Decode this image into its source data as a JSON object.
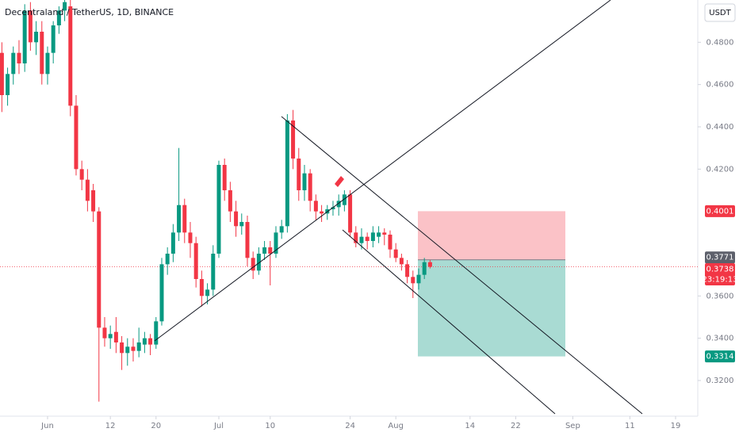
{
  "chart_data": {
    "type": "candlestick",
    "title": "Decentraland / TetherUS, 1D, BINANCE",
    "currency": "USDT",
    "x": [
      -8,
      -7,
      -6,
      -5,
      -4,
      -3,
      -2,
      -1,
      0,
      1,
      2,
      3,
      4,
      5,
      6,
      7,
      8,
      9,
      10,
      11,
      12,
      13,
      14,
      15,
      16,
      17,
      18,
      19,
      20,
      21,
      22,
      23,
      24,
      25,
      26,
      27,
      28,
      29,
      30,
      31,
      32,
      33,
      34,
      35,
      36,
      37,
      38,
      39,
      40,
      41,
      42,
      43,
      44,
      45,
      46,
      47,
      48,
      49,
      50,
      51,
      52,
      53,
      54,
      55,
      56,
      57,
      58,
      59,
      60,
      61,
      62,
      63,
      64,
      65,
      66,
      67
    ],
    "open": [
      0.475,
      0.455,
      0.465,
      0.475,
      0.47,
      0.495,
      0.48,
      0.485,
      0.465,
      0.475,
      0.488,
      0.495,
      0.497,
      0.45,
      0.42,
      0.415,
      0.41,
      0.4,
      0.345,
      0.34,
      0.343,
      0.338,
      0.333,
      0.336,
      0.334,
      0.337,
      0.34,
      0.337,
      0.348,
      0.375,
      0.38,
      0.39,
      0.403,
      0.39,
      0.385,
      0.368,
      0.36,
      0.363,
      0.38,
      0.422,
      0.41,
      0.4,
      0.393,
      0.395,
      0.378,
      0.372,
      0.38,
      0.383,
      0.38,
      0.39,
      0.393,
      0.443,
      0.425,
      0.41,
      0.418,
      0.405,
      0.4,
      0.399,
      0.401,
      0.402,
      0.403,
      0.408,
      0.39,
      0.385,
      0.388,
      0.386,
      0.388,
      0.39,
      0.389,
      0.382,
      0.378,
      0.375,
      0.369,
      0.366,
      0.37,
      0.376
    ],
    "high": [
      0.48,
      0.468,
      0.478,
      0.481,
      0.498,
      0.499,
      0.49,
      0.49,
      0.478,
      0.49,
      0.497,
      0.5,
      0.5,
      0.455,
      0.424,
      0.42,
      0.413,
      0.402,
      0.35,
      0.346,
      0.35,
      0.341,
      0.34,
      0.34,
      0.345,
      0.343,
      0.342,
      0.35,
      0.378,
      0.383,
      0.394,
      0.43,
      0.406,
      0.395,
      0.388,
      0.372,
      0.366,
      0.384,
      0.424,
      0.425,
      0.414,
      0.405,
      0.399,
      0.398,
      0.381,
      0.383,
      0.386,
      0.386,
      0.393,
      0.396,
      0.446,
      0.448,
      0.43,
      0.422,
      0.42,
      0.408,
      0.403,
      0.403,
      0.405,
      0.408,
      0.41,
      0.41,
      0.393,
      0.392,
      0.39,
      0.393,
      0.393,
      0.392,
      0.391,
      0.385,
      0.38,
      0.377,
      0.372,
      0.373,
      0.378,
      0.377
    ],
    "low": [
      0.447,
      0.45,
      0.46,
      0.465,
      0.466,
      0.476,
      0.474,
      0.46,
      0.46,
      0.47,
      0.484,
      0.49,
      0.445,
      0.417,
      0.41,
      0.4,
      0.395,
      0.31,
      0.336,
      0.335,
      0.333,
      0.325,
      0.327,
      0.329,
      0.331,
      0.333,
      0.332,
      0.335,
      0.346,
      0.37,
      0.376,
      0.386,
      0.385,
      0.378,
      0.364,
      0.355,
      0.356,
      0.36,
      0.378,
      0.405,
      0.395,
      0.388,
      0.389,
      0.374,
      0.368,
      0.37,
      0.377,
      0.365,
      0.378,
      0.387,
      0.39,
      0.42,
      0.405,
      0.405,
      0.4,
      0.396,
      0.395,
      0.396,
      0.398,
      0.398,
      0.4,
      0.388,
      0.383,
      0.382,
      0.382,
      0.383,
      0.385,
      0.384,
      0.378,
      0.376,
      0.372,
      0.366,
      0.359,
      0.363,
      0.368,
      0.373
    ],
    "close": [
      0.455,
      0.465,
      0.475,
      0.47,
      0.495,
      0.48,
      0.485,
      0.465,
      0.475,
      0.488,
      0.495,
      0.499,
      0.45,
      0.42,
      0.415,
      0.405,
      0.4,
      0.345,
      0.34,
      0.342,
      0.338,
      0.333,
      0.336,
      0.334,
      0.338,
      0.34,
      0.337,
      0.348,
      0.375,
      0.38,
      0.39,
      0.403,
      0.39,
      0.385,
      0.368,
      0.36,
      0.363,
      0.38,
      0.422,
      0.41,
      0.4,
      0.393,
      0.395,
      0.378,
      0.372,
      0.38,
      0.383,
      0.38,
      0.39,
      0.393,
      0.443,
      0.425,
      0.41,
      0.418,
      0.405,
      0.4,
      0.399,
      0.401,
      0.402,
      0.405,
      0.408,
      0.39,
      0.385,
      0.388,
      0.386,
      0.39,
      0.39,
      0.389,
      0.382,
      0.378,
      0.375,
      0.369,
      0.366,
      0.37,
      0.376,
      0.3738
    ],
    "up_color": "#089981",
    "down_color": "#f23645",
    "xlim": [
      -8.33,
      113.89
    ],
    "ylim": [
      0.305,
      0.5
    ],
    "xticks": [
      {
        "value": 0,
        "label": "Jun"
      },
      {
        "value": 11,
        "label": "12"
      },
      {
        "value": 19,
        "label": "20"
      },
      {
        "value": 30,
        "label": "Jul"
      },
      {
        "value": 39,
        "label": "10"
      },
      {
        "value": 53,
        "label": "24"
      },
      {
        "value": 61,
        "label": "Aug"
      },
      {
        "value": 74,
        "label": "14"
      },
      {
        "value": 82,
        "label": "22"
      },
      {
        "value": 92,
        "label": "Sep"
      },
      {
        "value": 102,
        "label": "11"
      },
      {
        "value": 110,
        "label": "19"
      }
    ],
    "yticks": [
      {
        "value": 0.32,
        "label": "0.3200"
      },
      {
        "value": 0.34,
        "label": "0.3400"
      },
      {
        "value": 0.36,
        "label": "0.3600"
      },
      {
        "value": 0.42,
        "label": "0.4200"
      },
      {
        "value": 0.44,
        "label": "0.4400"
      },
      {
        "value": 0.46,
        "label": "0.4600"
      },
      {
        "value": 0.48,
        "label": "0.4800"
      }
    ],
    "stop_loss": 0.4001,
    "entry": 0.3771,
    "target": 0.3314,
    "last_price": 0.3738,
    "countdown": "23:19:13"
  }
}
